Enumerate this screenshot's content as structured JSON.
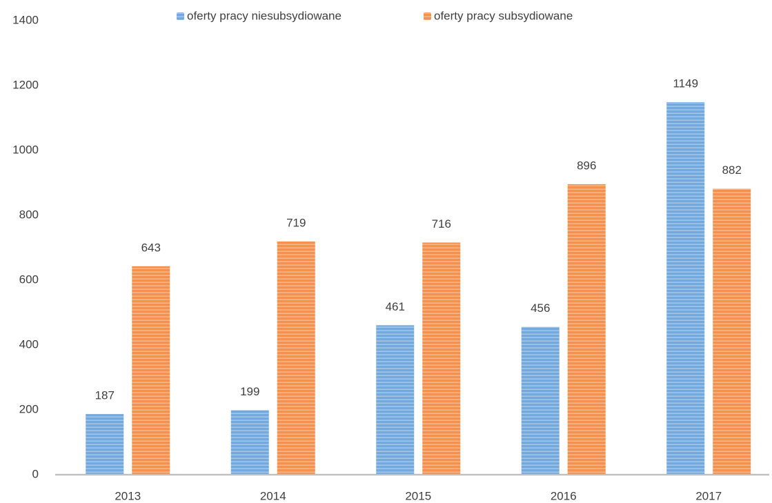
{
  "chart_data": {
    "type": "bar",
    "categories": [
      "2013",
      "2014",
      "2015",
      "2016",
      "2017"
    ],
    "series": [
      {
        "name": "oferty pracy niesubsydiowane",
        "color": "#74a9de",
        "values": [
          187,
          199,
          461,
          456,
          1149
        ]
      },
      {
        "name": "oferty pracy subsydiowane",
        "color": "#f5914f",
        "values": [
          643,
          719,
          716,
          896,
          882
        ]
      }
    ],
    "ylim": [
      0,
      1400
    ],
    "yticks": [
      0,
      200,
      400,
      600,
      800,
      1000,
      1200,
      1400
    ],
    "grid": false,
    "legend": "top",
    "data_labels": true
  }
}
